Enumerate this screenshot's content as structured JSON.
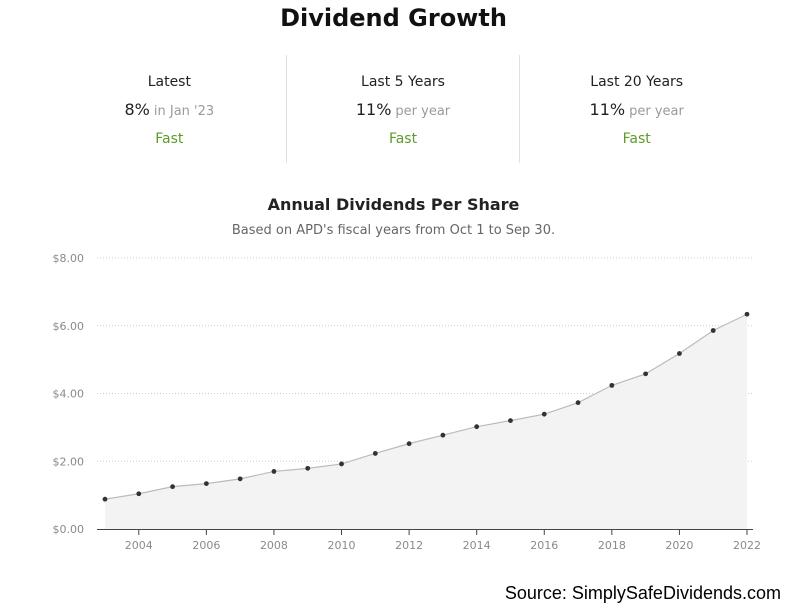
{
  "page": {
    "title": "Dividend Growth",
    "source": "Source: SimplySafeDividends.com"
  },
  "stats": [
    {
      "label": "Latest",
      "value": "8%",
      "sub": "in Jan '23",
      "speed": "Fast"
    },
    {
      "label": "Last 5 Years",
      "value": "11%",
      "sub": "per year",
      "speed": "Fast"
    },
    {
      "label": "Last 20 Years",
      "value": "11%",
      "sub": "per year",
      "speed": "Fast"
    }
  ],
  "colors": {
    "fast": "#5f9a2a",
    "line": "#bbbbbb",
    "area": "#f3f3f3",
    "point": "#333333",
    "grid": "#cccccc"
  },
  "chart_data": {
    "type": "area",
    "title": "Annual Dividends Per Share",
    "subtitle": "Based on APD's fiscal years from Oct 1 to Sep 30.",
    "x": [
      2003,
      2004,
      2005,
      2006,
      2007,
      2008,
      2009,
      2010,
      2011,
      2012,
      2013,
      2014,
      2015,
      2016,
      2017,
      2018,
      2019,
      2020,
      2021,
      2022
    ],
    "values": [
      0.88,
      1.04,
      1.25,
      1.34,
      1.48,
      1.7,
      1.79,
      1.92,
      2.23,
      2.52,
      2.77,
      3.02,
      3.2,
      3.39,
      3.73,
      4.24,
      4.58,
      5.18,
      5.86,
      6.34
    ],
    "xlim": [
      2003,
      2022
    ],
    "ylim": [
      0,
      8
    ],
    "yticks": [
      0,
      2,
      4,
      6,
      8
    ],
    "ytick_labels": [
      "$0.00",
      "$2.00",
      "$4.00",
      "$6.00",
      "$8.00"
    ],
    "xticks": [
      2004,
      2006,
      2008,
      2010,
      2012,
      2014,
      2016,
      2018,
      2020,
      2022
    ],
    "xtick_labels": [
      "2004",
      "2006",
      "2008",
      "2010",
      "2012",
      "2014",
      "2016",
      "2018",
      "2020",
      "2022"
    ],
    "grid": true,
    "xlabel": "",
    "ylabel": ""
  }
}
